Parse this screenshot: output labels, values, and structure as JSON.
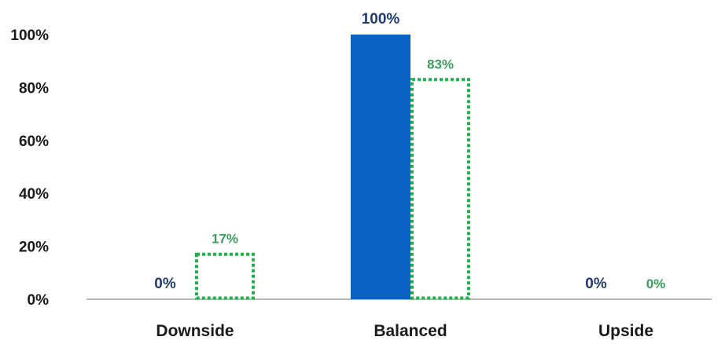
{
  "chart_data": {
    "type": "bar",
    "categories": [
      "Downside",
      "Balanced",
      "Upside"
    ],
    "series": [
      {
        "values": [
          0,
          100,
          0
        ],
        "labels": [
          "0%",
          "100%",
          "0%"
        ],
        "color": "#0a63c4",
        "label_color": "#1f3a6e",
        "style": "solid"
      },
      {
        "values": [
          17,
          83,
          0
        ],
        "labels": [
          "17%",
          "83%",
          "0%"
        ],
        "color": "#1db24b",
        "label_color": "#3a9e5a",
        "style": "dotted-outline"
      }
    ],
    "yticks": [
      "0%",
      "20%",
      "40%",
      "60%",
      "80%",
      "100%"
    ],
    "ylim": [
      0,
      100
    ],
    "grid": false,
    "legend": "none",
    "title": "",
    "xlabel": "",
    "ylabel": ""
  }
}
